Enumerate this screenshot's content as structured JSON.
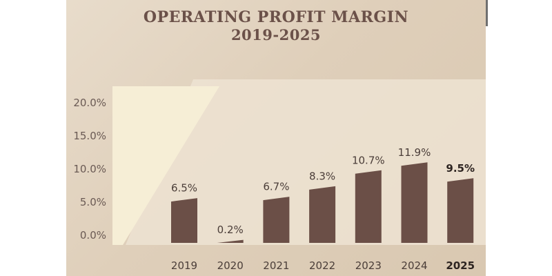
{
  "chart_data": {
    "type": "bar",
    "title": "OPERATING PROFIT MARGIN",
    "subtitle": "2019-2025",
    "xlabel": "",
    "ylabel": "",
    "categories": [
      "2019",
      "2020",
      "2021",
      "2022",
      "2023",
      "2024",
      "2025"
    ],
    "values": [
      6.5,
      0.2,
      6.7,
      8.3,
      10.7,
      11.9,
      9.5
    ],
    "data_labels": [
      "6.5%",
      "0.2%",
      "6.7%",
      "8.3%",
      "10.7%",
      "11.9%",
      "9.5%"
    ],
    "highlighted_category": "2025",
    "ylim": [
      0,
      20
    ],
    "yticks": [
      0,
      5,
      10,
      15,
      20
    ],
    "ytick_labels": [
      "0.0%",
      "5.0%",
      "10.0%",
      "15.0%",
      "20.0%"
    ],
    "grid": false,
    "legend": "none",
    "colors": {
      "bar": "#6b4f47",
      "title": "#6b5149",
      "background": "#e3d5c2",
      "panel": "#efe6d6",
      "highlight_panel": "#f5ecd4"
    }
  }
}
